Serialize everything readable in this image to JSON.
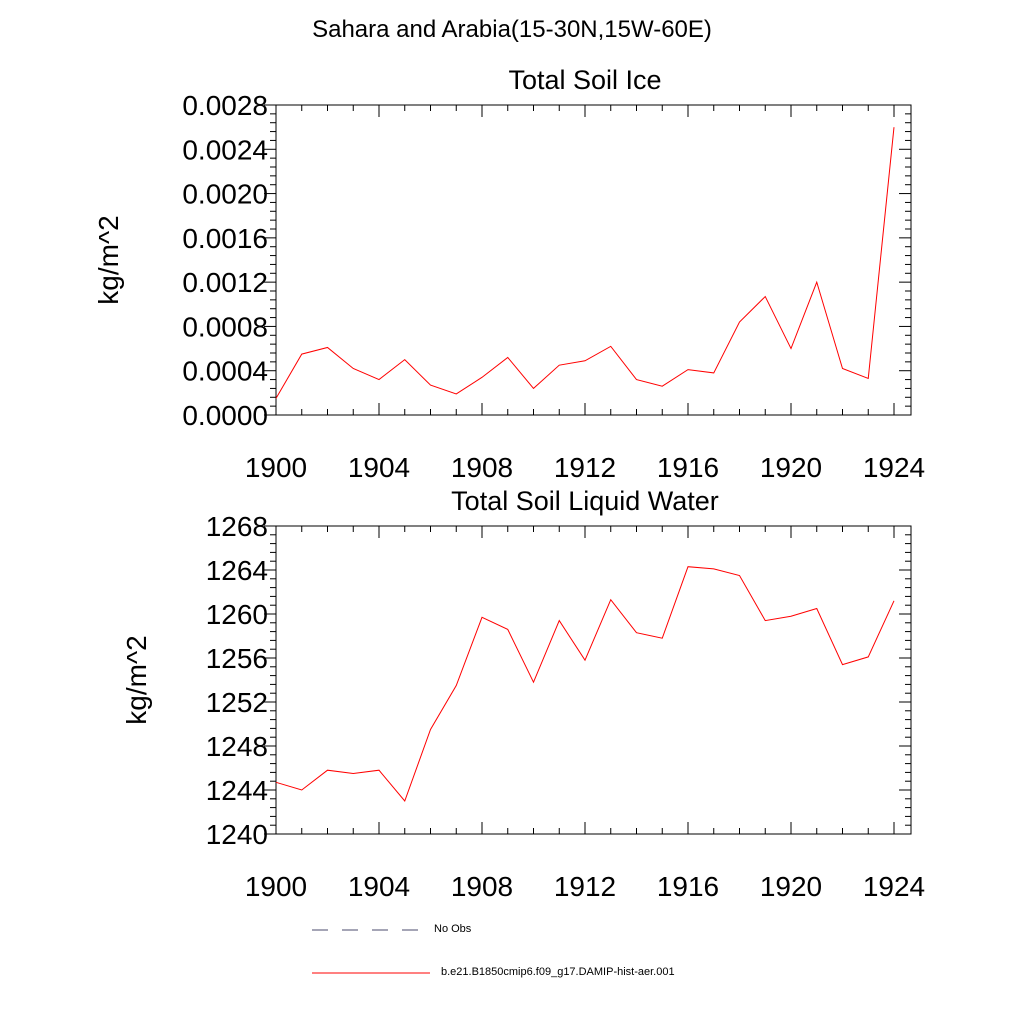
{
  "figure": {
    "title": "Sahara and Arabia(15-30N,15W-60E)"
  },
  "legend": {
    "items": [
      {
        "label": "No Obs",
        "style": "dashed",
        "color": "#4b4b6e"
      },
      {
        "label": "b.e21.B1850cmip6.f09_g17.DAMIP-hist-aer.001",
        "style": "solid",
        "color": "#ff0000"
      }
    ]
  },
  "chart_data": [
    {
      "type": "line",
      "title": "Total Soil Ice",
      "xlabel": "",
      "ylabel": "kg/m^2",
      "xlim": [
        1900,
        1924
      ],
      "ylim": [
        0,
        0.0028
      ],
      "x_ticks": [
        1900,
        1904,
        1908,
        1912,
        1916,
        1920,
        1924
      ],
      "y_ticks": [
        "0.0000",
        "0.0004",
        "0.0008",
        "0.0012",
        "0.0016",
        "0.0020",
        "0.0024",
        "0.0028"
      ],
      "y_tick_values": [
        0,
        0.0004,
        0.0008,
        0.0012,
        0.0016,
        0.002,
        0.0024,
        0.0028
      ],
      "grid": false,
      "x": [
        1900,
        1901,
        1902,
        1903,
        1904,
        1905,
        1906,
        1907,
        1908,
        1909,
        1910,
        1911,
        1912,
        1913,
        1914,
        1915,
        1916,
        1917,
        1918,
        1919,
        1920,
        1921,
        1922,
        1923,
        1924
      ],
      "series": [
        {
          "color": "#ff0000",
          "values": [
            0.00015,
            0.00055,
            0.00061,
            0.00042,
            0.00032,
            0.0005,
            0.00027,
            0.00019,
            0.00034,
            0.00052,
            0.00024,
            0.00045,
            0.00049,
            0.00062,
            0.00032,
            0.00026,
            0.00041,
            0.00038,
            0.00084,
            0.00107,
            0.0006,
            0.0012,
            0.00042,
            0.00033,
            0.0026
          ]
        }
      ]
    },
    {
      "type": "line",
      "title": "Total Soil Liquid Water",
      "xlabel": "",
      "ylabel": "kg/m^2",
      "xlim": [
        1900,
        1924
      ],
      "ylim": [
        1240,
        1268
      ],
      "x_ticks": [
        1900,
        1904,
        1908,
        1912,
        1916,
        1920,
        1924
      ],
      "y_ticks": [
        "1240",
        "1244",
        "1248",
        "1252",
        "1256",
        "1260",
        "1264",
        "1268"
      ],
      "y_tick_values": [
        1240,
        1244,
        1248,
        1252,
        1256,
        1260,
        1264,
        1268
      ],
      "grid": false,
      "x": [
        1900,
        1901,
        1902,
        1903,
        1904,
        1905,
        1906,
        1907,
        1908,
        1909,
        1910,
        1911,
        1912,
        1913,
        1914,
        1915,
        1916,
        1917,
        1918,
        1919,
        1920,
        1921,
        1922,
        1923,
        1924
      ],
      "series": [
        {
          "color": "#ff0000",
          "values": [
            1244.7,
            1244.0,
            1245.8,
            1245.5,
            1245.8,
            1243.0,
            1249.5,
            1253.5,
            1259.7,
            1258.6,
            1253.8,
            1259.4,
            1255.8,
            1261.3,
            1258.3,
            1257.8,
            1264.3,
            1264.1,
            1263.5,
            1259.4,
            1259.8,
            1260.5,
            1255.4,
            1256.1,
            1261.2
          ]
        }
      ]
    }
  ]
}
